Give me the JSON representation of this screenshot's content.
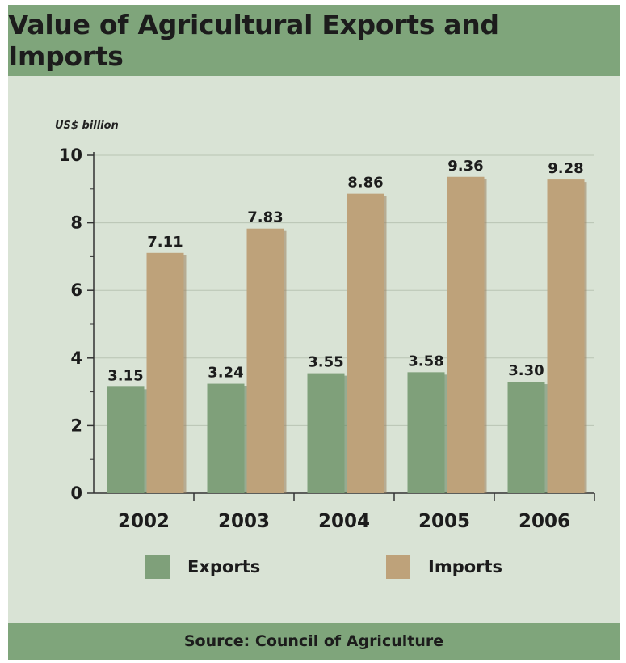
{
  "header": {
    "title": "Value of Agricultural Exports and Imports"
  },
  "footer": {
    "source": "Source: Council of Agriculture"
  },
  "colors": {
    "exports": "#7fa07a",
    "imports": "#bea27a",
    "background": "#d9e3d5",
    "band": "#7fa57b"
  },
  "chart_data": {
    "type": "bar",
    "title": "Value of Agricultural Exports and Imports",
    "ylabel": "US$ billion",
    "xlabel": "",
    "categories": [
      "2002",
      "2003",
      "2004",
      "2005",
      "2006"
    ],
    "ylim": [
      0,
      10
    ],
    "yticks": [
      0,
      2,
      4,
      6,
      8,
      10
    ],
    "grid": true,
    "legend_position": "bottom",
    "series": [
      {
        "name": "Exports",
        "values": [
          3.15,
          3.24,
          3.55,
          3.58,
          3.3
        ],
        "labels": [
          "3.15",
          "3.24",
          "3.55",
          "3.58",
          "3.30"
        ]
      },
      {
        "name": "Imports",
        "values": [
          7.11,
          7.83,
          8.86,
          9.36,
          9.28
        ],
        "labels": [
          "7.11",
          "7.83",
          "8.86",
          "9.36",
          "9.28"
        ]
      }
    ]
  }
}
